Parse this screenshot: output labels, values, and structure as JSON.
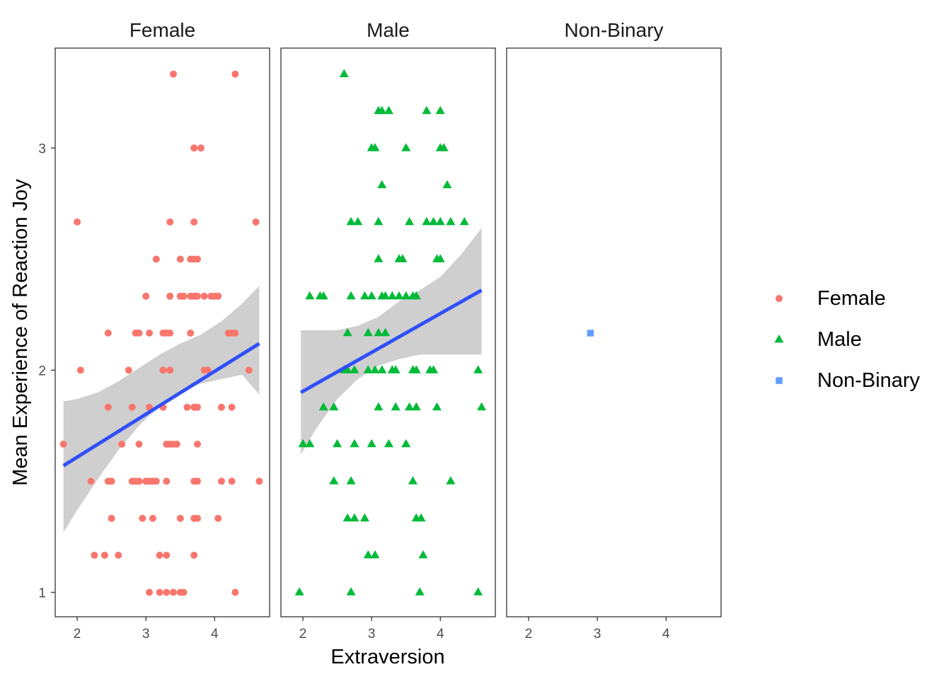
{
  "chart_data": {
    "type": "scatter",
    "facet_by": "gender",
    "xlabel": "Extraversion",
    "ylabel": "Mean Experience of Reaction Joy",
    "x_ticks": [
      2,
      3,
      4
    ],
    "y_ticks": [
      1,
      2,
      3
    ],
    "xlim": [
      1.68,
      4.8
    ],
    "ylim": [
      0.89,
      3.45
    ],
    "grid": false,
    "legend_position": "right",
    "fit_line_color": "#3050F8",
    "ribbon_color": "#bdbdbd",
    "legend": [
      {
        "label": "Female",
        "color": "#F8766D",
        "shape": "circle"
      },
      {
        "label": "Male",
        "color": "#00BA38",
        "shape": "triangle"
      },
      {
        "label": "Non-Binary",
        "color": "#619CFF",
        "shape": "square"
      }
    ],
    "panels": [
      {
        "title": "Female",
        "color": "#F8766D",
        "shape": "circle",
        "fit": {
          "x": [
            1.8,
            4.65
          ],
          "y": [
            1.57,
            2.12
          ]
        },
        "band": {
          "x": [
            1.8,
            2.0,
            2.3,
            2.6,
            2.9,
            3.2,
            3.5,
            3.8,
            4.1,
            4.4,
            4.65
          ],
          "upper": [
            1.86,
            1.87,
            1.9,
            1.95,
            2.01,
            2.07,
            2.12,
            2.16,
            2.22,
            2.3,
            2.38
          ],
          "lower": [
            1.27,
            1.37,
            1.51,
            1.64,
            1.75,
            1.84,
            1.9,
            1.94,
            1.96,
            1.98,
            1.89
          ]
        },
        "points": [
          [
            1.8,
            1.667
          ],
          [
            2.0,
            2.667
          ],
          [
            2.05,
            2.0
          ],
          [
            2.2,
            1.5
          ],
          [
            2.25,
            1.167
          ],
          [
            2.4,
            1.167
          ],
          [
            2.45,
            2.167
          ],
          [
            2.45,
            1.833
          ],
          [
            2.45,
            1.5
          ],
          [
            2.5,
            1.333
          ],
          [
            2.5,
            1.5
          ],
          [
            2.6,
            1.167
          ],
          [
            2.65,
            1.667
          ],
          [
            2.75,
            2.0
          ],
          [
            2.8,
            1.833
          ],
          [
            2.8,
            1.5
          ],
          [
            2.85,
            2.167
          ],
          [
            2.85,
            1.5
          ],
          [
            2.9,
            2.167
          ],
          [
            2.9,
            1.667
          ],
          [
            2.9,
            1.5
          ],
          [
            2.95,
            1.333
          ],
          [
            3.0,
            2.333
          ],
          [
            3.0,
            1.5
          ],
          [
            3.05,
            2.167
          ],
          [
            3.05,
            1.833
          ],
          [
            3.05,
            1.5
          ],
          [
            3.05,
            1.0
          ],
          [
            3.1,
            1.333
          ],
          [
            3.1,
            1.5
          ],
          [
            3.15,
            2.5
          ],
          [
            3.15,
            1.5
          ],
          [
            3.2,
            1.167
          ],
          [
            3.2,
            1.0
          ],
          [
            3.25,
            2.167
          ],
          [
            3.25,
            2.0
          ],
          [
            3.25,
            1.833
          ],
          [
            3.3,
            2.167
          ],
          [
            3.3,
            1.667
          ],
          [
            3.3,
            1.5
          ],
          [
            3.3,
            1.167
          ],
          [
            3.3,
            1.0
          ],
          [
            3.35,
            2.667
          ],
          [
            3.35,
            2.333
          ],
          [
            3.35,
            2.167
          ],
          [
            3.35,
            2.0
          ],
          [
            3.35,
            1.667
          ],
          [
            3.4,
            3.333
          ],
          [
            3.4,
            1.667
          ],
          [
            3.4,
            1.0
          ],
          [
            3.45,
            1.667
          ],
          [
            3.5,
            2.5
          ],
          [
            3.5,
            2.333
          ],
          [
            3.5,
            1.333
          ],
          [
            3.5,
            1.0
          ],
          [
            3.55,
            2.333
          ],
          [
            3.55,
            1.0
          ],
          [
            3.6,
            1.833
          ],
          [
            3.65,
            2.5
          ],
          [
            3.65,
            2.333
          ],
          [
            3.65,
            2.167
          ],
          [
            3.7,
            3.0
          ],
          [
            3.7,
            2.667
          ],
          [
            3.7,
            2.5
          ],
          [
            3.7,
            2.333
          ],
          [
            3.7,
            1.833
          ],
          [
            3.7,
            1.5
          ],
          [
            3.7,
            1.333
          ],
          [
            3.7,
            1.167
          ],
          [
            3.75,
            2.5
          ],
          [
            3.75,
            2.333
          ],
          [
            3.75,
            1.833
          ],
          [
            3.75,
            1.667
          ],
          [
            3.75,
            1.5
          ],
          [
            3.75,
            1.333
          ],
          [
            3.8,
            3.0
          ],
          [
            3.85,
            2.333
          ],
          [
            3.85,
            2.0
          ],
          [
            3.9,
            2.0
          ],
          [
            3.95,
            2.333
          ],
          [
            4.0,
            2.333
          ],
          [
            4.05,
            2.333
          ],
          [
            4.05,
            1.333
          ],
          [
            4.1,
            1.833
          ],
          [
            4.1,
            1.5
          ],
          [
            4.2,
            2.167
          ],
          [
            4.25,
            2.167
          ],
          [
            4.25,
            1.833
          ],
          [
            4.25,
            1.5
          ],
          [
            4.3,
            3.333
          ],
          [
            4.3,
            2.167
          ],
          [
            4.3,
            1.0
          ],
          [
            4.5,
            2.0
          ],
          [
            4.6,
            2.667
          ],
          [
            4.65,
            1.5
          ]
        ]
      },
      {
        "title": "Male",
        "color": "#00BA38",
        "shape": "triangle",
        "fit": {
          "x": [
            1.97,
            4.6
          ],
          "y": [
            1.9,
            2.36
          ]
        },
        "band": {
          "x": [
            1.97,
            2.2,
            2.5,
            2.8,
            3.1,
            3.4,
            3.7,
            4.0,
            4.3,
            4.6
          ],
          "upper": [
            2.18,
            2.18,
            2.18,
            2.2,
            2.24,
            2.31,
            2.36,
            2.42,
            2.52,
            2.64
          ],
          "lower": [
            1.62,
            1.74,
            1.87,
            1.96,
            2.02,
            2.05,
            2.07,
            2.07,
            2.07,
            2.07
          ]
        },
        "points": [
          [
            1.95,
            1.0
          ],
          [
            2.0,
            1.667
          ],
          [
            2.1,
            1.667
          ],
          [
            2.1,
            2.333
          ],
          [
            2.25,
            2.333
          ],
          [
            2.3,
            2.333
          ],
          [
            2.3,
            1.833
          ],
          [
            2.45,
            1.833
          ],
          [
            2.45,
            1.5
          ],
          [
            2.5,
            1.667
          ],
          [
            2.6,
            3.333
          ],
          [
            2.6,
            2.0
          ],
          [
            2.65,
            2.167
          ],
          [
            2.65,
            2.0
          ],
          [
            2.65,
            1.333
          ],
          [
            2.7,
            2.667
          ],
          [
            2.7,
            2.333
          ],
          [
            2.7,
            1.5
          ],
          [
            2.7,
            1.0
          ],
          [
            2.75,
            2.0
          ],
          [
            2.75,
            1.667
          ],
          [
            2.75,
            1.333
          ],
          [
            2.8,
            2.667
          ],
          [
            2.9,
            2.333
          ],
          [
            2.9,
            1.333
          ],
          [
            2.95,
            2.167
          ],
          [
            2.95,
            2.0
          ],
          [
            2.95,
            1.167
          ],
          [
            3.0,
            3.0
          ],
          [
            3.0,
            2.333
          ],
          [
            3.0,
            1.667
          ],
          [
            3.05,
            3.0
          ],
          [
            3.05,
            2.0
          ],
          [
            3.05,
            1.167
          ],
          [
            3.1,
            3.167
          ],
          [
            3.1,
            2.667
          ],
          [
            3.1,
            2.5
          ],
          [
            3.1,
            2.167
          ],
          [
            3.1,
            1.833
          ],
          [
            3.15,
            3.167
          ],
          [
            3.15,
            2.833
          ],
          [
            3.15,
            2.333
          ],
          [
            3.15,
            2.0
          ],
          [
            3.2,
            2.333
          ],
          [
            3.2,
            2.167
          ],
          [
            3.25,
            3.167
          ],
          [
            3.25,
            1.667
          ],
          [
            3.3,
            2.333
          ],
          [
            3.3,
            2.0
          ],
          [
            3.35,
            2.0
          ],
          [
            3.35,
            1.833
          ],
          [
            3.4,
            2.5
          ],
          [
            3.4,
            2.333
          ],
          [
            3.45,
            2.5
          ],
          [
            3.5,
            3.0
          ],
          [
            3.5,
            2.333
          ],
          [
            3.5,
            1.667
          ],
          [
            3.55,
            2.667
          ],
          [
            3.55,
            1.833
          ],
          [
            3.6,
            2.333
          ],
          [
            3.6,
            2.0
          ],
          [
            3.6,
            1.5
          ],
          [
            3.65,
            2.333
          ],
          [
            3.65,
            2.0
          ],
          [
            3.65,
            1.833
          ],
          [
            3.65,
            1.333
          ],
          [
            3.7,
            1.0
          ],
          [
            3.72,
            1.333
          ],
          [
            3.75,
            1.167
          ],
          [
            3.8,
            3.167
          ],
          [
            3.8,
            2.667
          ],
          [
            3.85,
            2.0
          ],
          [
            3.9,
            2.667
          ],
          [
            3.9,
            2.0
          ],
          [
            3.95,
            2.5
          ],
          [
            3.95,
            1.833
          ],
          [
            4.0,
            3.167
          ],
          [
            4.0,
            3.0
          ],
          [
            4.0,
            2.667
          ],
          [
            4.0,
            2.5
          ],
          [
            4.05,
            3.0
          ],
          [
            4.1,
            2.833
          ],
          [
            4.15,
            2.667
          ],
          [
            4.15,
            1.5
          ],
          [
            4.35,
            2.667
          ],
          [
            4.55,
            2.0
          ],
          [
            4.55,
            1.0
          ],
          [
            4.6,
            1.833
          ]
        ]
      },
      {
        "title": "Non-Binary",
        "color": "#619CFF",
        "shape": "square",
        "fit": null,
        "band": null,
        "points": [
          [
            2.9,
            2.167
          ]
        ]
      }
    ]
  }
}
